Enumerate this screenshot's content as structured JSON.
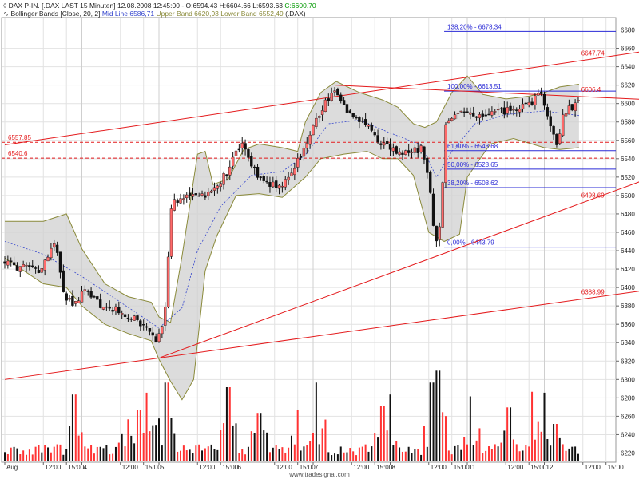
{
  "header": {
    "line1_symbol": "DAX P-IN. [.DAX LAST 15 Minuten]",
    "line1_time": "12.08.2008 12:45:00",
    "line1_open": "O:6594.43",
    "line1_high": "H:6604.66",
    "line1_low": "L:6593.63",
    "line1_close": "C:6600.70",
    "line2_indicator": "Bollinger Bands [Close, 20, 2]",
    "line2_mid": "Mid Line 6586,71",
    "line2_upper": "Upper Band 6620,93",
    "line2_lower": "Lower Band 6552,49",
    "line2_symbol": "(.DAX)"
  },
  "footer": {
    "credit": "www.tradesignal.com"
  },
  "colors": {
    "bull": "#ff6a6a",
    "bear": "#111111",
    "bands": "#8a8a3a",
    "band_fill": "#d0d0d0",
    "trend": "#e41a1c",
    "fib": "#2a2ad6",
    "volume_bull": "#ff3333",
    "volume_bear": "#111111",
    "grid": "#e2e2e2",
    "close_green": "#009900",
    "mid_blue": "#3344cc"
  },
  "chart_data": {
    "type": "candlestick",
    "y_axis": {
      "ylim": [
        6210,
        6690
      ],
      "ticks": [
        6220,
        6240,
        6260,
        6280,
        6300,
        6320,
        6340,
        6360,
        6380,
        6400,
        6420,
        6440,
        6460,
        6480,
        6500,
        6520,
        6540,
        6560,
        6580,
        6600,
        6620,
        6640,
        6660,
        6680
      ]
    },
    "x_axis": {
      "tick_labels": [
        {
          "label": "Aug",
          "day": "4",
          "t": 0.0
        },
        {
          "label": "12:00",
          "day": "4",
          "t": 0.5
        },
        {
          "label": "15:00",
          "day": "4",
          "t": 0.8
        },
        {
          "label": "4",
          "day": "4",
          "t": 1.0
        },
        {
          "label": "12:00",
          "day": "4",
          "t": 1.5
        },
        {
          "label": "15:00",
          "day": "4",
          "t": 1.8
        },
        {
          "label": "5",
          "day": "5",
          "t": 2.0
        },
        {
          "label": "12:00",
          "day": "5",
          "t": 2.5
        },
        {
          "label": "15:00",
          "day": "5",
          "t": 2.8
        },
        {
          "label": "6",
          "day": "6",
          "t": 3.0
        },
        {
          "label": "12:00",
          "day": "6",
          "t": 3.5
        },
        {
          "label": "15:00",
          "day": "6",
          "t": 3.8
        },
        {
          "label": "7",
          "day": "7",
          "t": 4.0
        },
        {
          "label": "12:00",
          "day": "7",
          "t": 4.5
        },
        {
          "label": "15:00",
          "day": "7",
          "t": 4.8
        },
        {
          "label": "8",
          "day": "8",
          "t": 5.0
        },
        {
          "label": "12:00",
          "day": "8",
          "t": 5.5
        },
        {
          "label": "15:00",
          "day": "8",
          "t": 5.8
        },
        {
          "label": "11",
          "day": "11",
          "t": 6.0
        },
        {
          "label": "12:00",
          "day": "11",
          "t": 6.5
        },
        {
          "label": "15:00",
          "day": "11",
          "t": 6.8
        },
        {
          "label": "12",
          "day": "12",
          "t": 7.0
        },
        {
          "label": "12:00",
          "day": "12",
          "t": 7.5
        },
        {
          "label": "15:00",
          "day": "12",
          "t": 7.8
        }
      ],
      "day_separators": [
        1.0,
        2.0,
        3.0,
        4.0,
        5.0,
        6.0,
        7.0
      ]
    },
    "price_path": [
      [
        0.0,
        6430
      ],
      [
        0.2,
        6422
      ],
      [
        0.5,
        6418
      ],
      [
        0.7,
        6452
      ],
      [
        0.8,
        6392
      ],
      [
        0.95,
        6382
      ],
      [
        1.1,
        6398
      ],
      [
        1.3,
        6380
      ],
      [
        1.6,
        6372
      ],
      [
        1.9,
        6354
      ],
      [
        2.0,
        6338
      ],
      [
        2.1,
        6358
      ],
      [
        2.15,
        6420
      ],
      [
        2.2,
        6490
      ],
      [
        2.4,
        6500
      ],
      [
        2.7,
        6502
      ],
      [
        2.9,
        6522
      ],
      [
        3.1,
        6556
      ],
      [
        3.3,
        6522
      ],
      [
        3.6,
        6508
      ],
      [
        3.8,
        6530
      ],
      [
        4.0,
        6568
      ],
      [
        4.2,
        6602
      ],
      [
        4.3,
        6613
      ],
      [
        4.5,
        6592
      ],
      [
        4.7,
        6578
      ],
      [
        4.9,
        6560
      ],
      [
        5.1,
        6548
      ],
      [
        5.3,
        6545
      ],
      [
        5.45,
        6552
      ],
      [
        5.55,
        6508
      ],
      [
        5.62,
        6448
      ],
      [
        5.7,
        6470
      ],
      [
        5.75,
        6576
      ],
      [
        5.9,
        6592
      ],
      [
        6.2,
        6584
      ],
      [
        6.5,
        6592
      ],
      [
        6.8,
        6596
      ],
      [
        7.0,
        6612
      ],
      [
        7.1,
        6580
      ],
      [
        7.2,
        6556
      ],
      [
        7.3,
        6592
      ],
      [
        7.45,
        6600
      ]
    ],
    "bollinger": {
      "upper": [
        [
          0.0,
          6472
        ],
        [
          0.5,
          6472
        ],
        [
          0.8,
          6480
        ],
        [
          1.0,
          6442
        ],
        [
          1.3,
          6404
        ],
        [
          1.6,
          6390
        ],
        [
          1.9,
          6384
        ],
        [
          2.0,
          6368
        ],
        [
          2.15,
          6362
        ],
        [
          2.3,
          6434
        ],
        [
          2.5,
          6545
        ],
        [
          2.6,
          6548
        ],
        [
          2.7,
          6512
        ],
        [
          2.9,
          6518
        ],
        [
          3.1,
          6550
        ],
        [
          3.3,
          6556
        ],
        [
          3.6,
          6552
        ],
        [
          3.8,
          6548
        ],
        [
          3.9,
          6580
        ],
        [
          4.1,
          6612
        ],
        [
          4.3,
          6624
        ],
        [
          4.6,
          6612
        ],
        [
          4.9,
          6604
        ],
        [
          5.1,
          6596
        ],
        [
          5.3,
          6578
        ],
        [
          5.45,
          6574
        ],
        [
          5.6,
          6580
        ],
        [
          5.8,
          6612
        ],
        [
          6.0,
          6630
        ],
        [
          6.2,
          6610
        ],
        [
          6.5,
          6605
        ],
        [
          6.8,
          6608
        ],
        [
          7.0,
          6612
        ],
        [
          7.2,
          6618
        ],
        [
          7.45,
          6621
        ]
      ],
      "mid": [
        [
          0.0,
          6450
        ],
        [
          0.5,
          6436
        ],
        [
          1.0,
          6412
        ],
        [
          1.5,
          6384
        ],
        [
          2.0,
          6356
        ],
        [
          2.3,
          6378
        ],
        [
          2.5,
          6440
        ],
        [
          2.8,
          6488
        ],
        [
          3.2,
          6522
        ],
        [
          3.6,
          6526
        ],
        [
          3.9,
          6544
        ],
        [
          4.2,
          6578
        ],
        [
          4.6,
          6582
        ],
        [
          5.0,
          6568
        ],
        [
          5.4,
          6555
        ],
        [
          5.6,
          6520
        ],
        [
          5.8,
          6548
        ],
        [
          6.1,
          6578
        ],
        [
          6.5,
          6588
        ],
        [
          7.0,
          6592
        ],
        [
          7.45,
          6587
        ]
      ],
      "lower": [
        [
          0.0,
          6432
        ],
        [
          0.5,
          6404
        ],
        [
          0.8,
          6400
        ],
        [
          1.0,
          6380
        ],
        [
          1.3,
          6360
        ],
        [
          1.6,
          6350
        ],
        [
          1.9,
          6342
        ],
        [
          2.0,
          6322
        ],
        [
          2.15,
          6298
        ],
        [
          2.3,
          6278
        ],
        [
          2.45,
          6300
        ],
        [
          2.6,
          6418
        ],
        [
          2.75,
          6456
        ],
        [
          3.0,
          6500
        ],
        [
          3.3,
          6502
        ],
        [
          3.6,
          6498
        ],
        [
          3.9,
          6520
        ],
        [
          4.1,
          6540
        ],
        [
          4.4,
          6545
        ],
        [
          4.7,
          6548
        ],
        [
          4.9,
          6540
        ],
        [
          5.1,
          6540
        ],
        [
          5.3,
          6522
        ],
        [
          5.5,
          6460
        ],
        [
          5.7,
          6450
        ],
        [
          5.9,
          6458
        ],
        [
          6.0,
          6520
        ],
        [
          6.3,
          6556
        ],
        [
          6.6,
          6562
        ],
        [
          7.0,
          6552
        ],
        [
          7.2,
          6550
        ],
        [
          7.45,
          6552
        ]
      ]
    },
    "horizontal_lines": [
      {
        "y": 6557.85,
        "label": "6557.85"
      },
      {
        "y": 6540.6,
        "label": "6540.6"
      }
    ],
    "trendlines": [
      {
        "t1": 0.0,
        "y1": 6555,
        "t2": 8.4,
        "y2": 6658,
        "label": "6647.74",
        "label_t": 7.5
      },
      {
        "t1": 4.28,
        "y1": 6620,
        "t2": 8.4,
        "y2": 6604,
        "label": "6606.4",
        "label_t": 7.5
      },
      {
        "t1": 2.02,
        "y1": 6324,
        "t2": 8.4,
        "y2": 6520,
        "label": "6498.69",
        "label_t": 7.5
      },
      {
        "t1": 0.0,
        "y1": 6300,
        "t2": 8.4,
        "y2": 6398,
        "label": "6388.99",
        "label_t": 7.5
      }
    ],
    "fibonacci": {
      "t_start": 5.7,
      "levels": [
        {
          "y": 6678.34,
          "label": "138,20% - 6678.34"
        },
        {
          "y": 6613.51,
          "label": "100,00% - 6613.51"
        },
        {
          "y": 6548.68,
          "label": "61,80% - 6548.68"
        },
        {
          "y": 6528.65,
          "label": "50,00% - 6528.65"
        },
        {
          "y": 6508.62,
          "label": "38,20% - 6508.62"
        },
        {
          "y": 6443.79,
          "label": "0,00% - 6443.79"
        }
      ]
    },
    "volume": {
      "spikes": [
        [
          0.9,
          0.72
        ],
        [
          1.6,
          0.45
        ],
        [
          1.75,
          0.55
        ],
        [
          1.85,
          0.74
        ],
        [
          2.1,
          0.85
        ],
        [
          2.9,
          0.8
        ],
        [
          3.3,
          0.52
        ],
        [
          3.8,
          0.55
        ],
        [
          4.05,
          0.85
        ],
        [
          4.9,
          0.6
        ],
        [
          5.0,
          0.72
        ],
        [
          5.55,
          0.85
        ],
        [
          5.62,
          0.98
        ],
        [
          6.05,
          0.7
        ],
        [
          6.55,
          0.58
        ],
        [
          6.85,
          0.75
        ],
        [
          7.0,
          0.74
        ],
        [
          7.15,
          0.4
        ]
      ]
    }
  }
}
